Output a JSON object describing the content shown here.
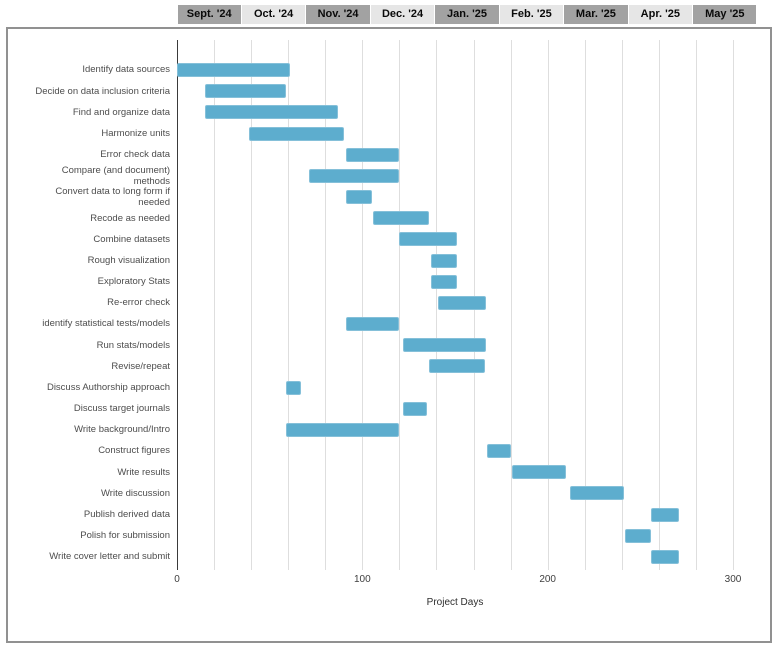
{
  "header": {
    "months": [
      {
        "label": "Sept. '24",
        "shade": "dark"
      },
      {
        "label": "Oct. '24",
        "shade": "light"
      },
      {
        "label": "Nov. '24",
        "shade": "dark"
      },
      {
        "label": "Dec. '24",
        "shade": "light"
      },
      {
        "label": "Jan. '25",
        "shade": "dark"
      },
      {
        "label": "Feb. '25",
        "shade": "light"
      },
      {
        "label": "Mar. '25",
        "shade": "dark"
      },
      {
        "label": "Apr. '25",
        "shade": "light"
      },
      {
        "label": "May '25",
        "shade": "dark"
      }
    ]
  },
  "chart_data": {
    "type": "bar",
    "subtype": "gantt",
    "title": "",
    "xlabel": "Project Days",
    "ylabel": "",
    "xlim": [
      0,
      300
    ],
    "x_tick_labels": [
      0,
      100,
      200,
      300
    ],
    "grid_step": 20,
    "grid_on": true,
    "bar_color": "#5dadce",
    "tasks": [
      {
        "label": "Identify data sources",
        "start": 0,
        "end": 61
      },
      {
        "label": "Decide on data inclusion criteria",
        "start": 15,
        "end": 59
      },
      {
        "label": "Find and organize data",
        "start": 15,
        "end": 87
      },
      {
        "label": "Harmonize units",
        "start": 39,
        "end": 90
      },
      {
        "label": "Error check data",
        "start": 91,
        "end": 120
      },
      {
        "label": "Compare (and document)\nmethods",
        "start": 71,
        "end": 120
      },
      {
        "label": "Convert data to long form if\nneeded",
        "start": 91,
        "end": 105
      },
      {
        "label": "Recode as needed",
        "start": 106,
        "end": 136
      },
      {
        "label": "Combine datasets",
        "start": 120,
        "end": 151
      },
      {
        "label": "Rough visualization",
        "start": 137,
        "end": 151
      },
      {
        "label": "Exploratory Stats",
        "start": 137,
        "end": 151
      },
      {
        "label": "Re-error check",
        "start": 141,
        "end": 167
      },
      {
        "label": "identify statistical tests/models",
        "start": 91,
        "end": 120
      },
      {
        "label": "Run stats/models",
        "start": 122,
        "end": 167
      },
      {
        "label": "Revise/repeat",
        "start": 136,
        "end": 166
      },
      {
        "label": "Discuss Authorship approach",
        "start": 59,
        "end": 67
      },
      {
        "label": "Discuss target journals",
        "start": 122,
        "end": 135
      },
      {
        "label": "Write background/Intro",
        "start": 59,
        "end": 120
      },
      {
        "label": "Construct figures",
        "start": 167,
        "end": 180
      },
      {
        "label": "Write results",
        "start": 181,
        "end": 210
      },
      {
        "label": "Write discussion",
        "start": 212,
        "end": 241
      },
      {
        "label": "Publish derived data",
        "start": 256,
        "end": 271
      },
      {
        "label": "Polish for submission",
        "start": 242,
        "end": 256
      },
      {
        "label": "Write cover letter and submit",
        "start": 256,
        "end": 271
      }
    ]
  },
  "colors": {
    "bar": "#5dadce",
    "bar_border": "#85c0d9",
    "grid": "#dedede",
    "axis": "#3a3a3a",
    "frame_border": "#919191",
    "header_dark": "#a2a2a2",
    "header_light": "#e6e6e6"
  }
}
